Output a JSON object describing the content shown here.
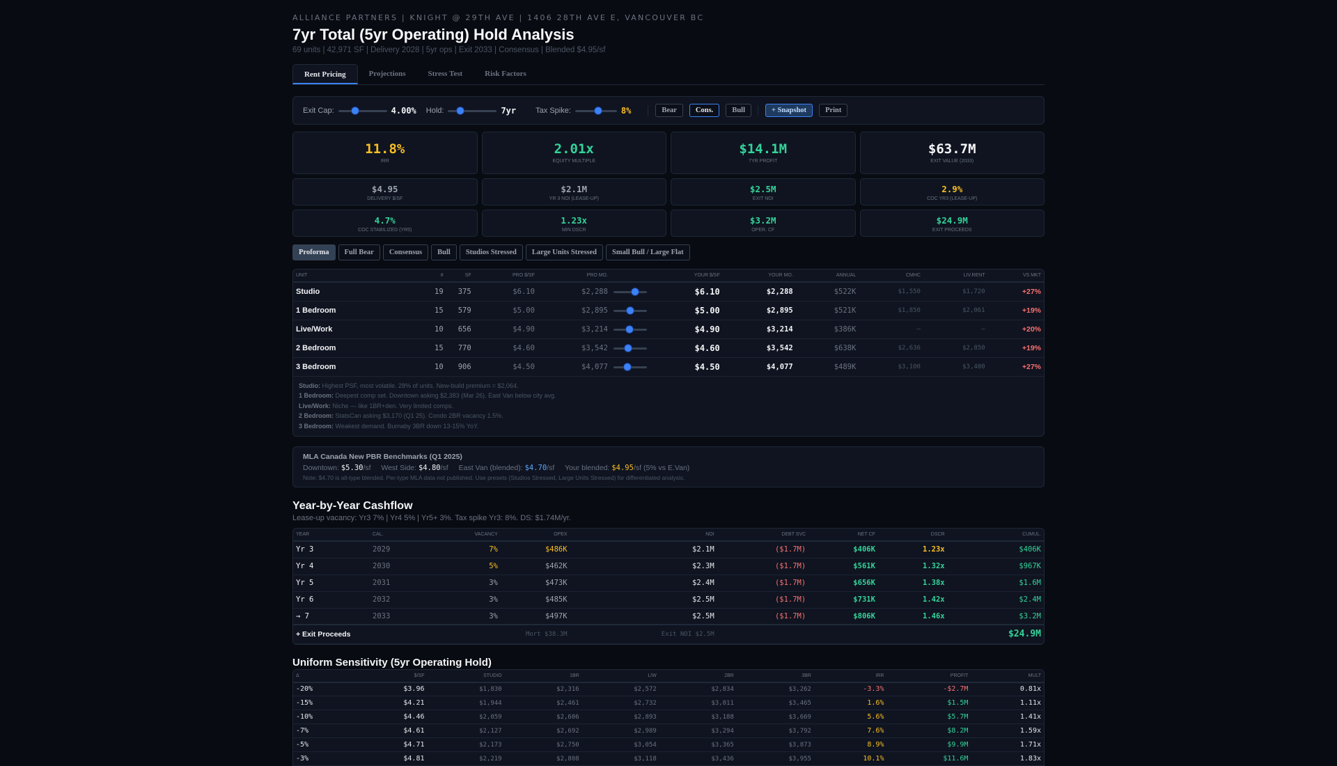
{
  "header": {
    "eyebrow": "ALLIANCE PARTNERS | KNIGHT @ 29TH AVE | 1406 28TH AVE E, VANCOUVER BC",
    "title": "7yr Total (5yr Operating) Hold Analysis",
    "subtitle": "69 units | 42,971 SF | Delivery 2028 | 5yr ops | Exit 2033 | Consensus | Blended $4.95/sf"
  },
  "tabs": [
    {
      "label": "Rent Pricing",
      "active": true
    },
    {
      "label": "Projections"
    },
    {
      "label": "Stress Test"
    },
    {
      "label": "Risk Factors"
    }
  ],
  "controls": {
    "exit_cap": {
      "label": "Exit Cap:",
      "value": "4.00%",
      "fraction": 0.35
    },
    "hold": {
      "label": "Hold:",
      "value": "7yr",
      "fraction": 0.25
    },
    "tax_spike": {
      "label": "Tax Spike:",
      "value": "8%",
      "fraction": 0.55
    },
    "scenarios": [
      "Bear",
      "Cons.",
      "Bull"
    ],
    "selected_scenario": "Cons.",
    "snapshot": "+ Snapshot",
    "print": "Print"
  },
  "kpis_big": [
    {
      "value": "11.8%",
      "label": "IRR",
      "color": "#fbbf24"
    },
    {
      "value": "2.01x",
      "label": "Equity Multiple",
      "color": "#34d399"
    },
    {
      "value": "$14.1M",
      "label": "7yr Profit",
      "color": "#34d399"
    },
    {
      "value": "$63.7M",
      "label": "Exit Value (2033)",
      "color": "#f3f4f6"
    }
  ],
  "kpis_small": [
    {
      "value": "$4.95",
      "label": "Delivery $/SF",
      "color": "#9ca3af"
    },
    {
      "value": "$2.1M",
      "label": "Yr 3 NOI (Lease-Up)",
      "color": "#9ca3af"
    },
    {
      "value": "$2.5M",
      "label": "Exit NOI",
      "color": "#34d399"
    },
    {
      "value": "2.9%",
      "label": "CoC Yr3 (Lease-Up)",
      "color": "#fbbf24"
    },
    {
      "value": "4.7%",
      "label": "CoC Stabilized (Yr5)",
      "color": "#34d399"
    },
    {
      "value": "1.23x",
      "label": "Min DSCR",
      "color": "#34d399"
    },
    {
      "value": "$3.2M",
      "label": "Oper. CF",
      "color": "#34d399"
    },
    {
      "value": "$24.9M",
      "label": "Exit Proceeds",
      "color": "#34d399"
    }
  ],
  "presets": [
    "Proforma",
    "Full Bear",
    "Consensus",
    "Bull",
    "Studios Stressed",
    "Large Units Stressed",
    "Small Bull / Large Flat"
  ],
  "selected_preset": "Proforma",
  "unit_table": {
    "headers": [
      "Unit",
      "#",
      "SF",
      "Pro $/SF",
      "Pro Mo.",
      "",
      "Your $/SF",
      "Your Mo.",
      "Annual",
      "CMHC",
      "Liv.Rent",
      "vs Mkt"
    ],
    "rows": [
      {
        "unit": "Studio",
        "n": "19",
        "sf": "375",
        "pro_psf": "$6.10",
        "pro_mo": "$2,288",
        "slider": 0.65,
        "your_psf": "$6.10",
        "your_mo": "$2,288",
        "annual": "$522K",
        "cmhc": "$1,550",
        "livrent": "$1,720",
        "vs": "+27%"
      },
      {
        "unit": "1 Bedroom",
        "n": "15",
        "sf": "579",
        "pro_psf": "$5.00",
        "pro_mo": "$2,895",
        "slider": 0.5,
        "your_psf": "$5.00",
        "your_mo": "$2,895",
        "annual": "$521K",
        "cmhc": "$1,850",
        "livrent": "$2,061",
        "vs": "+19%"
      },
      {
        "unit": "Live/Work",
        "n": "10",
        "sf": "656",
        "pro_psf": "$4.90",
        "pro_mo": "$3,214",
        "slider": 0.47,
        "your_psf": "$4.90",
        "your_mo": "$3,214",
        "annual": "$386K",
        "cmhc": "—",
        "livrent": "—",
        "vs": "+20%"
      },
      {
        "unit": "2 Bedroom",
        "n": "15",
        "sf": "770",
        "pro_psf": "$4.60",
        "pro_mo": "$3,542",
        "slider": 0.43,
        "your_psf": "$4.60",
        "your_mo": "$3,542",
        "annual": "$638K",
        "cmhc": "$2,636",
        "livrent": "$2,850",
        "vs": "+19%"
      },
      {
        "unit": "3 Bedroom",
        "n": "10",
        "sf": "906",
        "pro_psf": "$4.50",
        "pro_mo": "$4,077",
        "slider": 0.41,
        "your_psf": "$4.50",
        "your_mo": "$4,077",
        "annual": "$489K",
        "cmhc": "$3,100",
        "livrent": "$3,400",
        "vs": "+27%"
      }
    ],
    "notes": [
      {
        "k": "Studio:",
        "t": " Highest PSF, most volatile. 28% of units. New-build premium = $2,064."
      },
      {
        "k": "1 Bedroom:",
        "t": " Deepest comp set. Downtown asking $2,383 (Mar 26). East Van below city avg."
      },
      {
        "k": "Live/Work:",
        "t": " Niche — like 1BR+den. Very limited comps."
      },
      {
        "k": "2 Bedroom:",
        "t": " StatsCan asking $3,170 (Q1 25). Condo 2BR vacancy 1.5%."
      },
      {
        "k": "3 Bedroom:",
        "t": " Weakest demand. Burnaby 3BR down 13-15% YoY."
      }
    ]
  },
  "mla": {
    "title": "MLA Canada New PBR Benchmarks (Q1 2025)",
    "downtown_label": "Downtown: ",
    "downtown": "$5.30",
    "west_label": "West Side: ",
    "west": "$4.80",
    "east_label": "East Van (blended): ",
    "east": "$4.70",
    "yours_label": "Your blended: ",
    "yours": "$4.95",
    "yours_suffix": "/sf (5% vs E.Van)",
    "unit": "/sf",
    "note": "Note: $4.70 is all-type blended. Per-type MLA data not published. Use presets (Studios Stressed, Large Units Stressed) for differentiated analysis."
  },
  "cashflow": {
    "title": "Year-by-Year Cashflow",
    "subtitle": "Lease-up vacancy: Yr3 7% | Yr4 5% | Yr5+ 3%. Tax spike Yr3: 8%. DS: $1.74M/yr.",
    "headers": [
      "Year",
      "Cal.",
      "Vacancy",
      "OpEx",
      "NOI",
      "Debt Svc",
      "Net CF",
      "DSCR",
      "Cumul."
    ],
    "rows": [
      [
        "Yr 3",
        "2029",
        "7%",
        "$486K",
        "$2.1M",
        "($1.7M)",
        "$406K",
        "1.23x",
        "$406K"
      ],
      [
        "Yr 4",
        "2030",
        "5%",
        "$462K",
        "$2.3M",
        "($1.7M)",
        "$561K",
        "1.32x",
        "$967K"
      ],
      [
        "Yr 5",
        "2031",
        "3%",
        "$473K",
        "$2.4M",
        "($1.7M)",
        "$656K",
        "1.38x",
        "$1.6M"
      ],
      [
        "Yr 6",
        "2032",
        "3%",
        "$485K",
        "$2.5M",
        "($1.7M)",
        "$731K",
        "1.42x",
        "$2.4M"
      ],
      [
        "→ 7",
        "2033",
        "3%",
        "$497K",
        "$2.5M",
        "($1.7M)",
        "$806K",
        "1.46x",
        "$3.2M"
      ]
    ],
    "exit": {
      "label": "+ Exit Proceeds",
      "mort": "Mort $38.3M",
      "exit_noi": "Exit NOI $2.5M",
      "total": "$24.9M"
    }
  },
  "sensitivity": {
    "title": "Uniform Sensitivity (5yr Operating Hold)",
    "headers": [
      "Δ",
      "$/SF",
      "Studio",
      "1BR",
      "L/W",
      "2BR",
      "3BR",
      "IRR",
      "Profit",
      "Mult"
    ],
    "rows": [
      [
        "-20%",
        "$3.96",
        "$1,830",
        "$2,316",
        "$2,572",
        "$2,834",
        "$3,262",
        "-3.3%",
        "-$2.7M",
        "0.81x"
      ],
      [
        "-15%",
        "$4.21",
        "$1,944",
        "$2,461",
        "$2,732",
        "$3,011",
        "$3,465",
        "1.6%",
        "$1.5M",
        "1.11x"
      ],
      [
        "-10%",
        "$4.46",
        "$2,059",
        "$2,606",
        "$2,893",
        "$3,188",
        "$3,669",
        "5.6%",
        "$5.7M",
        "1.41x"
      ],
      [
        "-7%",
        "$4.61",
        "$2,127",
        "$2,692",
        "$2,989",
        "$3,294",
        "$3,792",
        "7.6%",
        "$8.2M",
        "1.59x"
      ],
      [
        "-5%",
        "$4.71",
        "$2,173",
        "$2,750",
        "$3,054",
        "$3,365",
        "$3,873",
        "8.9%",
        "$9.9M",
        "1.71x"
      ],
      [
        "-3%",
        "$4.81",
        "$2,219",
        "$2,808",
        "$3,118",
        "$3,436",
        "$3,955",
        "10.1%",
        "$11.6M",
        "1.83x"
      ]
    ]
  },
  "colors": {
    "green": "#34d399",
    "yellow": "#fbbf24",
    "red": "#f87171",
    "accent": "#3b82f6",
    "bg": "#080b12",
    "panel": "#0f1420"
  }
}
